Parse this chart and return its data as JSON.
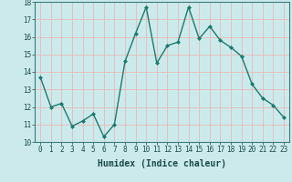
{
  "xlabel": "Humidex (Indice chaleur)",
  "x_values": [
    0,
    1,
    2,
    3,
    4,
    5,
    6,
    7,
    8,
    9,
    10,
    11,
    12,
    13,
    14,
    15,
    16,
    17,
    18,
    19,
    20,
    21,
    22,
    23
  ],
  "y_values": [
    13.7,
    12.0,
    12.2,
    10.9,
    11.2,
    11.6,
    10.3,
    11.0,
    14.6,
    16.2,
    17.7,
    14.5,
    15.5,
    15.7,
    17.7,
    15.9,
    16.6,
    15.8,
    15.4,
    14.9,
    13.3,
    12.5,
    12.1,
    11.4
  ],
  "line_color": "#1a7a6e",
  "marker": "D",
  "marker_size": 2.0,
  "bg_color": "#cceaec",
  "grid_color": "#e8b8b8",
  "ylim": [
    10,
    18
  ],
  "xlim": [
    -0.5,
    23.5
  ],
  "yticks": [
    10,
    11,
    12,
    13,
    14,
    15,
    16,
    17,
    18
  ],
  "xticks": [
    0,
    1,
    2,
    3,
    4,
    5,
    6,
    7,
    8,
    9,
    10,
    11,
    12,
    13,
    14,
    15,
    16,
    17,
    18,
    19,
    20,
    21,
    22,
    23
  ],
  "tick_label_fontsize": 5.5,
  "xlabel_fontsize": 7,
  "line_width": 1.0
}
